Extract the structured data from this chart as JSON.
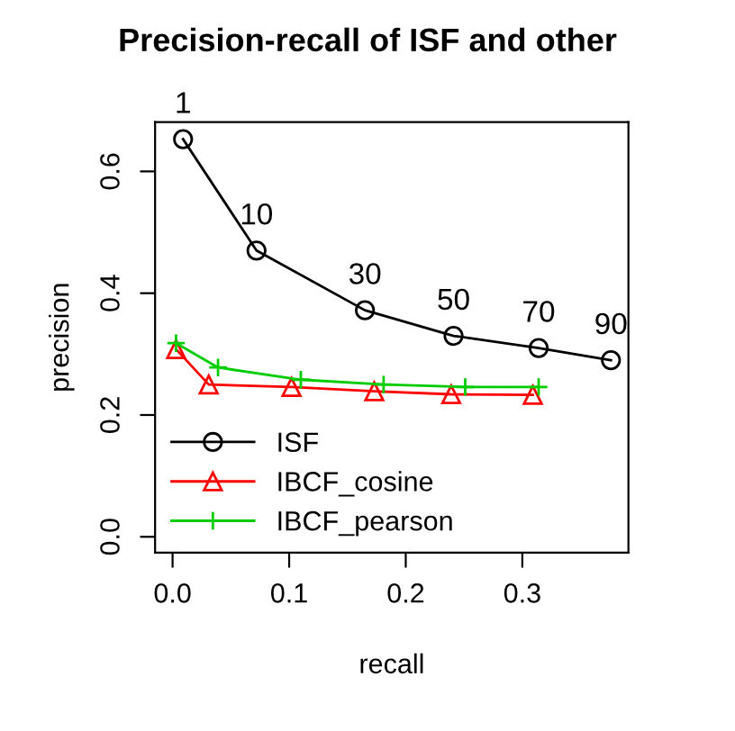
{
  "chart_data": {
    "type": "line",
    "title": "Precision-recall of ISF and other",
    "xlabel": "recall",
    "ylabel": "precision",
    "xlim": [
      -0.015,
      0.391
    ],
    "ylim": [
      -0.026,
      0.681
    ],
    "xticks": [
      {
        "value": 0,
        "label": "0.0"
      },
      0.1,
      0.2,
      0.3
    ],
    "yticks": [
      {
        "value": 0,
        "label": "0.0"
      },
      0.2,
      0.4,
      0.6
    ],
    "series": [
      {
        "name": "ISF",
        "color": "#000000",
        "marker": "circle",
        "x": [
          0.009,
          0.072,
          0.165,
          0.241,
          0.314,
          0.376
        ],
        "values": [
          0.653,
          0.47,
          0.372,
          0.33,
          0.31,
          0.29
        ]
      },
      {
        "name": "IBCF_cosine",
        "color": "#ff0000",
        "marker": "triangle",
        "x": [
          0.003,
          0.031,
          0.102,
          0.173,
          0.239,
          0.309
        ],
        "values": [
          0.308,
          0.25,
          0.246,
          0.239,
          0.234,
          0.233
        ]
      },
      {
        "name": "IBCF_pearson",
        "color": "#00cc00",
        "marker": "cross",
        "x": [
          0.003,
          0.039,
          0.11,
          0.181,
          0.251,
          0.314
        ],
        "values": [
          0.318,
          0.278,
          0.258,
          0.25,
          0.246,
          0.246
        ]
      }
    ],
    "annotations": [
      {
        "text": "1",
        "x": 0.009,
        "y": 0.653
      },
      {
        "text": "10",
        "x": 0.072,
        "y": 0.47
      },
      {
        "text": "30",
        "x": 0.165,
        "y": 0.372
      },
      {
        "text": "50",
        "x": 0.241,
        "y": 0.33
      },
      {
        "text": "70",
        "x": 0.314,
        "y": 0.31
      },
      {
        "text": "90",
        "x": 0.376,
        "y": 0.29
      }
    ],
    "legend": "bottom left",
    "grid": false
  }
}
